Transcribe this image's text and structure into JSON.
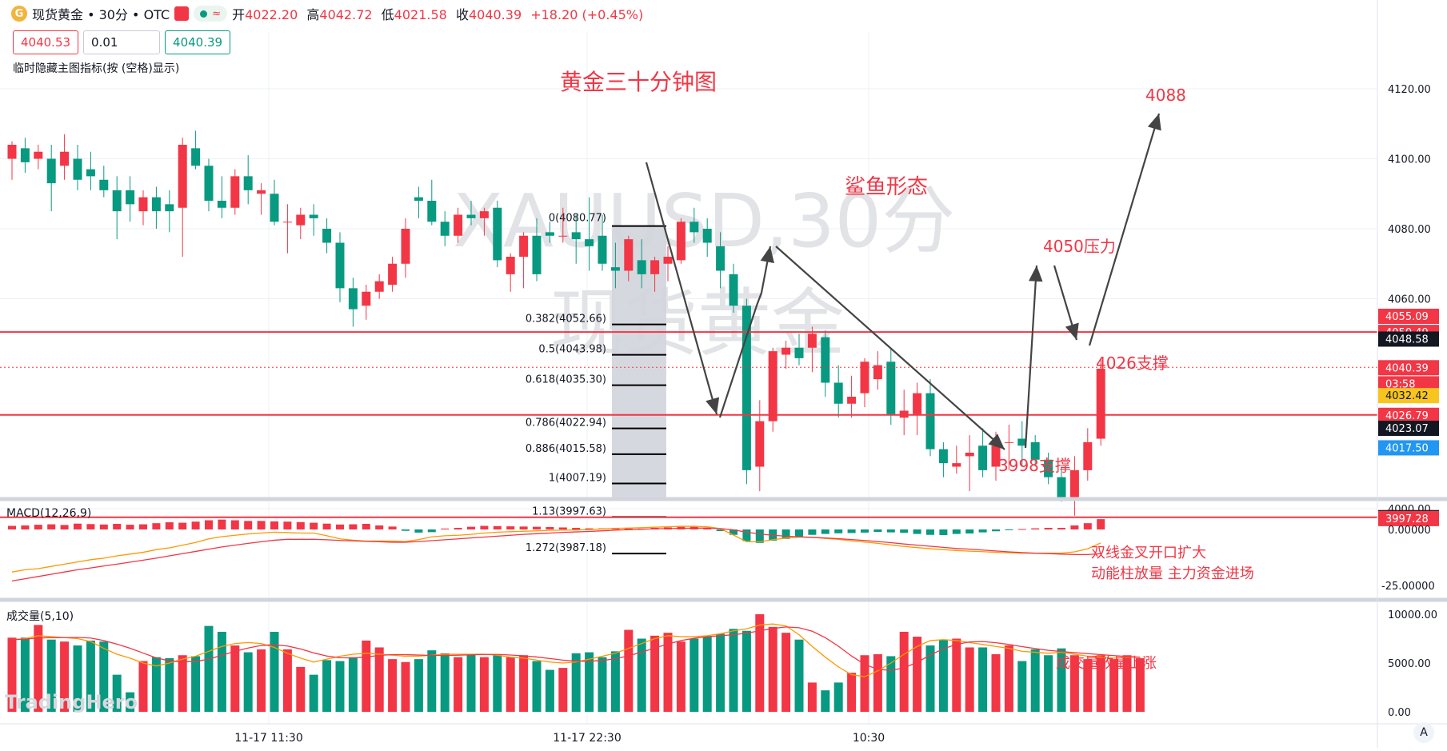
{
  "header": {
    "coin_symbol": "G",
    "symbol_title": "现货黄金 • 30分 • OTC",
    "indicator_glyph": "≈",
    "open_label": "开",
    "open": "4022.20",
    "high_label": "高",
    "high": "4042.72",
    "low_label": "低",
    "low": "4021.58",
    "close_label": "收",
    "close": "4040.39",
    "change": "+18.20 (+0.45%)"
  },
  "trade": {
    "sell_price": "4040.53",
    "quantity": "0.01",
    "buy_price": "4040.39"
  },
  "hint_text": "临时隐藏主图指标(按 (空格)显示)",
  "watermark": {
    "line1": "XAUUSD,30分",
    "line2": "现货黄金"
  },
  "annotations": {
    "chart_title": "黄金三十分钟图",
    "pattern": "鲨鱼形态",
    "target": "4088",
    "resistance": "4050压力",
    "support1": "4026支撑",
    "support2": "3998支撑",
    "macd_note_1": "双线金叉开口扩大",
    "macd_note_2": "动能柱放量 主力资金进场",
    "volume_note": "成交量放量上涨"
  },
  "fib_levels": [
    {
      "label": "0(4080.77)",
      "value": 4080.77
    },
    {
      "label": "0.382(4052.66)",
      "value": 4052.66
    },
    {
      "label": "0.5(4043.98)",
      "value": 4043.98
    },
    {
      "label": "0.618(4035.30)",
      "value": 4035.3
    },
    {
      "label": "0.786(4022.94)",
      "value": 4022.94
    },
    {
      "label": "0.886(4015.58)",
      "value": 4015.58
    },
    {
      "label": "1(4007.19)",
      "value": 4007.19
    },
    {
      "label": "1.13(3997.63)",
      "value": 3997.63
    },
    {
      "label": "1.272(3987.18)",
      "value": 3987.18
    }
  ],
  "price_axis": {
    "ticks": [
      "4120.00",
      "4100.00",
      "4080.00",
      "4060.00",
      "4000.00"
    ],
    "tick_values": [
      4120,
      4100,
      4080,
      4060,
      4000
    ],
    "badges": [
      {
        "text": "4055.09",
        "value": 4055.09,
        "color": "#f23645"
      },
      {
        "text": "4050.49",
        "value": 4050.49,
        "color": "#f23645"
      },
      {
        "text": "4048.58",
        "value": 4048.58,
        "color": "#131722"
      },
      {
        "text": "4040.39",
        "value": 4040.39,
        "color": "#f23645"
      },
      {
        "text": "03:58",
        "value": 4035.8,
        "color": "#f23645"
      },
      {
        "text": "4032.42",
        "value": 4032.42,
        "color": "#f7c51e"
      },
      {
        "text": "4026.79",
        "value": 4026.79,
        "color": "#f23645"
      },
      {
        "text": "4023.07",
        "value": 4023.07,
        "color": "#131722"
      },
      {
        "text": "4017.50",
        "value": 4017.5,
        "color": "#2196f3"
      },
      {
        "text": "3997.55",
        "value": 3997.55,
        "color": "#131722"
      },
      {
        "text": "3997.28",
        "value": 3997.28,
        "color": "#f23645"
      }
    ]
  },
  "macd": {
    "title": "MACD(12,26,9)",
    "ticks": [
      "0.00000",
      "-25.00000"
    ]
  },
  "volume": {
    "title": "成交量(5,10)",
    "ticks": [
      "10000.00",
      "5000.00",
      "0.00"
    ],
    "logo": "TradingHero"
  },
  "time_axis": {
    "labels": [
      "11-17 11:30",
      "11-17 22:30",
      "10:30"
    ]
  },
  "scroll_label": "A",
  "colors": {
    "up": "#f23645",
    "down": "#089981",
    "line": "#f23645",
    "fib_bg": "#d1d4dc"
  },
  "chart_data": {
    "type": "candlestick",
    "title": "黄金三十分钟图",
    "ylim": [
      3984,
      4125
    ],
    "candles": [
      {
        "o": 4100,
        "h": 4105,
        "l": 4094,
        "c": 4104
      },
      {
        "o": 4103,
        "h": 4106,
        "l": 4096,
        "c": 4099
      },
      {
        "o": 4100,
        "h": 4104,
        "l": 4097,
        "c": 4102
      },
      {
        "o": 4100,
        "h": 4104,
        "l": 4085,
        "c": 4093
      },
      {
        "o": 4098,
        "h": 4107,
        "l": 4094,
        "c": 4102
      },
      {
        "o": 4100,
        "h": 4104,
        "l": 4091,
        "c": 4094
      },
      {
        "o": 4097,
        "h": 4102,
        "l": 4091,
        "c": 4095
      },
      {
        "o": 4094,
        "h": 4098,
        "l": 4089,
        "c": 4091
      },
      {
        "o": 4091,
        "h": 4095,
        "l": 4077,
        "c": 4085
      },
      {
        "o": 4091,
        "h": 4095,
        "l": 4082,
        "c": 4087
      },
      {
        "o": 4085,
        "h": 4091,
        "l": 4081,
        "c": 4089
      },
      {
        "o": 4089,
        "h": 4092,
        "l": 4080,
        "c": 4085
      },
      {
        "o": 4087,
        "h": 4091,
        "l": 4079,
        "c": 4085
      },
      {
        "o": 4086,
        "h": 4106,
        "l": 4072,
        "c": 4104
      },
      {
        "o": 4103,
        "h": 4108,
        "l": 4097,
        "c": 4098
      },
      {
        "o": 4098,
        "h": 4100,
        "l": 4085,
        "c": 4088
      },
      {
        "o": 4088,
        "h": 4095,
        "l": 4083,
        "c": 4086
      },
      {
        "o": 4086,
        "h": 4097,
        "l": 4084,
        "c": 4095
      },
      {
        "o": 4095,
        "h": 4101,
        "l": 4087,
        "c": 4091
      },
      {
        "o": 4090,
        "h": 4093,
        "l": 4084,
        "c": 4091
      },
      {
        "o": 4090,
        "h": 4094,
        "l": 4081,
        "c": 4082
      },
      {
        "o": 4082,
        "h": 4087,
        "l": 4073,
        "c": 4082
      },
      {
        "o": 4081,
        "h": 4086,
        "l": 4077,
        "c": 4084
      },
      {
        "o": 4084,
        "h": 4087,
        "l": 4078,
        "c": 4083
      },
      {
        "o": 4080,
        "h": 4083,
        "l": 4073,
        "c": 4076
      },
      {
        "o": 4076,
        "h": 4079,
        "l": 4059,
        "c": 4063
      },
      {
        "o": 4063,
        "h": 4066,
        "l": 4052,
        "c": 4057
      },
      {
        "o": 4058,
        "h": 4064,
        "l": 4054,
        "c": 4062
      },
      {
        "o": 4062,
        "h": 4067,
        "l": 4060,
        "c": 4065
      },
      {
        "o": 4064,
        "h": 4072,
        "l": 4062,
        "c": 4070
      },
      {
        "o": 4070,
        "h": 4083,
        "l": 4066,
        "c": 4080
      },
      {
        "o": 4089,
        "h": 4092,
        "l": 4083,
        "c": 4088
      },
      {
        "o": 4088,
        "h": 4094,
        "l": 4081,
        "c": 4082
      },
      {
        "o": 4082,
        "h": 4085,
        "l": 4075,
        "c": 4078
      },
      {
        "o": 4078,
        "h": 4086,
        "l": 4076,
        "c": 4084
      },
      {
        "o": 4084,
        "h": 4088,
        "l": 4081,
        "c": 4083
      },
      {
        "o": 4083,
        "h": 4086,
        "l": 4078,
        "c": 4085
      },
      {
        "o": 4086,
        "h": 4088,
        "l": 4069,
        "c": 4071
      },
      {
        "o": 4067,
        "h": 4073,
        "l": 4062,
        "c": 4072
      },
      {
        "o": 4072,
        "h": 4079,
        "l": 4063,
        "c": 4078
      },
      {
        "o": 4078,
        "h": 4083,
        "l": 4065,
        "c": 4067
      },
      {
        "o": 4079,
        "h": 4082,
        "l": 4076,
        "c": 4078
      },
      {
        "o": 4078,
        "h": 4086,
        "l": 4076,
        "c": 4078
      },
      {
        "o": 4079,
        "h": 4084,
        "l": 4070,
        "c": 4077
      },
      {
        "o": 4077,
        "h": 4089,
        "l": 4068,
        "c": 4075
      },
      {
        "o": 4078,
        "h": 4084,
        "l": 4068,
        "c": 4070
      },
      {
        "o": 4069,
        "h": 4076,
        "l": 4063,
        "c": 4068
      },
      {
        "o": 4068,
        "h": 4078,
        "l": 4065,
        "c": 4077
      },
      {
        "o": 4071,
        "h": 4077,
        "l": 4063,
        "c": 4067
      },
      {
        "o": 4067,
        "h": 4072,
        "l": 4062,
        "c": 4071
      },
      {
        "o": 4070,
        "h": 4075,
        "l": 4065,
        "c": 4072
      },
      {
        "o": 4071,
        "h": 4083,
        "l": 4070,
        "c": 4082
      },
      {
        "o": 4082,
        "h": 4086,
        "l": 4076,
        "c": 4079
      },
      {
        "o": 4080,
        "h": 4083,
        "l": 4072,
        "c": 4076
      },
      {
        "o": 4075,
        "h": 4079,
        "l": 4063,
        "c": 4068
      },
      {
        "o": 4067,
        "h": 4070,
        "l": 4056,
        "c": 4058
      },
      {
        "o": 4058,
        "h": 4060,
        "l": 4007,
        "c": 4011
      },
      {
        "o": 4012,
        "h": 4031,
        "l": 4005,
        "c": 4025
      },
      {
        "o": 4025,
        "h": 4046,
        "l": 4022,
        "c": 4045
      },
      {
        "o": 4044,
        "h": 4048,
        "l": 4040,
        "c": 4046
      },
      {
        "o": 4046,
        "h": 4050,
        "l": 4041,
        "c": 4043
      },
      {
        "o": 4046,
        "h": 4052,
        "l": 4039,
        "c": 4050
      },
      {
        "o": 4049,
        "h": 4051,
        "l": 4032,
        "c": 4036
      },
      {
        "o": 4036,
        "h": 4041,
        "l": 4026,
        "c": 4030
      },
      {
        "o": 4030,
        "h": 4038,
        "l": 4026,
        "c": 4032
      },
      {
        "o": 4033,
        "h": 4043,
        "l": 4029,
        "c": 4042
      },
      {
        "o": 4037,
        "h": 4045,
        "l": 4034,
        "c": 4041
      },
      {
        "o": 4042,
        "h": 4046,
        "l": 4024,
        "c": 4027
      },
      {
        "o": 4026,
        "h": 4034,
        "l": 4021,
        "c": 4028
      },
      {
        "o": 4027,
        "h": 4036,
        "l": 4021,
        "c": 4033
      },
      {
        "o": 4033,
        "h": 4037,
        "l": 4015,
        "c": 4017
      },
      {
        "o": 4017,
        "h": 4019,
        "l": 4009,
        "c": 4013
      },
      {
        "o": 4012,
        "h": 4018,
        "l": 4010,
        "c": 4013
      },
      {
        "o": 4015,
        "h": 4021,
        "l": 4005,
        "c": 4016
      },
      {
        "o": 4018,
        "h": 4023,
        "l": 4009,
        "c": 4011
      },
      {
        "o": 4012,
        "h": 4022,
        "l": 4008,
        "c": 4018
      },
      {
        "o": 4019,
        "h": 4024,
        "l": 4011,
        "c": 4019
      },
      {
        "o": 4020,
        "h": 4025,
        "l": 4012,
        "c": 4018
      },
      {
        "o": 4019,
        "h": 4021,
        "l": 4012,
        "c": 4014
      },
      {
        "o": 4014,
        "h": 4016,
        "l": 4007,
        "c": 4009
      },
      {
        "o": 4009,
        "h": 4012,
        "l": 4002,
        "c": 4003
      },
      {
        "o": 4003,
        "h": 4015,
        "l": 3998,
        "c": 4011
      },
      {
        "o": 4011,
        "h": 4023,
        "l": 4008,
        "c": 4019
      },
      {
        "o": 4020,
        "h": 4043,
        "l": 4018,
        "c": 4040
      }
    ],
    "macd_hist": [
      1.6,
      1.8,
      2.1,
      2.3,
      2.0,
      2.6,
      2.4,
      2.2,
      2.5,
      2.1,
      2.3,
      2.8,
      3.2,
      3.0,
      3.5,
      4.1,
      4.4,
      4.1,
      3.8,
      3.8,
      3.6,
      3.5,
      3.3,
      3.0,
      2.6,
      2.2,
      2.3,
      2.5,
      1.8,
      1.3,
      -0.6,
      -1.4,
      -1.2,
      0.4,
      0.7,
      1.2,
      1.6,
      1.5,
      1.4,
      1.3,
      1.2,
      1.1,
      0.9,
      0.7,
      0.5,
      0.5,
      0.6,
      0.5,
      0.4,
      0.7,
      0.9,
      1.2,
      1.2,
      0.8,
      -0.7,
      -2.4,
      -5.2,
      -6.0,
      -5.0,
      -4.2,
      -3.2,
      -2.4,
      -2.0,
      -1.7,
      -1.6,
      -1.4,
      -1.1,
      -1.3,
      -1.5,
      -2.0,
      -2.4,
      -2.5,
      -2.0,
      -1.8,
      -1.3,
      -0.8,
      -0.3,
      0.2,
      0.5,
      0.7,
      0.7,
      1.8,
      2.8,
      4.6
    ],
    "macd_dif": [
      -19,
      -18,
      -17.5,
      -16.5,
      -15.5,
      -14.5,
      -13.5,
      -12.8,
      -11.8,
      -11,
      -10.2,
      -9,
      -8.2,
      -7,
      -5.8,
      -4.2,
      -3.2,
      -2.6,
      -2,
      -1.6,
      -1.2,
      -1.4,
      -1.6,
      -1.6,
      -2.8,
      -4.2,
      -4.8,
      -5.2,
      -5.2,
      -5.2,
      -5.4,
      -4.5,
      -3.3,
      -2.8,
      -2.6,
      -2.2,
      -1.6,
      -1.2,
      -1.0,
      -0.8,
      -0.6,
      -0.4,
      -0.3,
      -0.2,
      -0.1,
      0.2,
      0.5,
      0.6,
      0.8,
      1.0,
      1.2,
      1.4,
      1.4,
      1.2,
      0.4,
      -2.5,
      -5.5,
      -5.5,
      -4.6,
      -3.8,
      -3.4,
      -3.5,
      -4.0,
      -4.4,
      -5.1,
      -5.6,
      -6.2,
      -6.9,
      -7.6,
      -8.1,
      -8.6,
      -9.0,
      -9.4,
      -9.7,
      -9.9,
      -10.2,
      -10.4,
      -10.6,
      -10.6,
      -10.6,
      -10.6,
      -10.0,
      -8.6,
      -6.0
    ],
    "macd_dea": [
      -23,
      -22,
      -21,
      -20,
      -19,
      -18,
      -17.2,
      -16.3,
      -15.5,
      -14.6,
      -13.7,
      -12.8,
      -11.8,
      -10.8,
      -9.8,
      -8.8,
      -7.8,
      -7,
      -6.2,
      -5.5,
      -4.8,
      -4.4,
      -4.4,
      -4.4,
      -4.6,
      -4.9,
      -5.1,
      -5.3,
      -5.5,
      -5.7,
      -5.7,
      -5.4,
      -5.0,
      -4.6,
      -4.2,
      -3.8,
      -3.4,
      -3.0,
      -2.6,
      -2.2,
      -1.9,
      -1.6,
      -1.3,
      -1.1,
      -0.9,
      -0.6,
      -0.3,
      -0.1,
      0.1,
      0.3,
      0.4,
      0.5,
      0.6,
      0.6,
      0.4,
      -0.2,
      -1.2,
      -2.0,
      -2.6,
      -3.0,
      -3.3,
      -3.5,
      -3.8,
      -4.1,
      -4.5,
      -4.9,
      -5.4,
      -5.9,
      -6.5,
      -7.0,
      -7.5,
      -8.0,
      -8.5,
      -8.8,
      -9.2,
      -9.6,
      -10.0,
      -10.3,
      -10.6,
      -10.8,
      -11.0,
      -11.2,
      -11.2,
      -10.8
    ],
    "volume": [
      7600,
      7600,
      8900,
      7400,
      7200,
      6800,
      7300,
      7200,
      3800,
      2000,
      5200,
      5600,
      5500,
      5800,
      5700,
      8800,
      8200,
      6800,
      6100,
      6400,
      8200,
      6400,
      4600,
      3800,
      5300,
      5200,
      5600,
      7300,
      6600,
      5400,
      5100,
      5400,
      6300,
      6000,
      5600,
      5900,
      5600,
      5800,
      5600,
      5800,
      5200,
      4300,
      4500,
      6000,
      6100,
      5600,
      6200,
      8400,
      7500,
      7800,
      8100,
      7200,
      7500,
      7700,
      8000,
      8500,
      8300,
      10000,
      8700,
      8100,
      7400,
      3000,
      2200,
      3000,
      4000,
      5800,
      5900,
      5700,
      8200,
      7700,
      6800,
      7400,
      7500,
      6600,
      6600,
      5900,
      6800,
      5200,
      6400,
      5800,
      6500,
      5800,
      5400,
      5800,
      5400,
      5800,
      5500
    ],
    "vol_ma5": [
      7400,
      7500,
      7800,
      7700,
      7600,
      7500,
      7200,
      6500,
      5900,
      5500,
      5000,
      4700,
      5000,
      5400,
      5700,
      6200,
      6700,
      7000,
      7100,
      7000,
      6600,
      6000,
      5500,
      5100,
      5400,
      5700,
      5900,
      6000,
      5900,
      5800,
      5700,
      5700,
      5800,
      5900,
      5900,
      5900,
      5900,
      5800,
      5600,
      5500,
      5300,
      5100,
      5000,
      5100,
      5400,
      5700,
      6000,
      6500,
      7000,
      7500,
      7800,
      7700,
      7700,
      7800,
      8000,
      8300,
      8500,
      8900,
      9000,
      8800,
      7900,
      6700,
      5600,
      4600,
      3800,
      3600,
      4200,
      5000,
      5900,
      6700,
      7300,
      7400,
      7300,
      7100,
      6900,
      6700,
      6500,
      6200,
      6100,
      6000,
      6100,
      5900,
      5700,
      5600,
      5500,
      5600,
      5600
    ]
  }
}
